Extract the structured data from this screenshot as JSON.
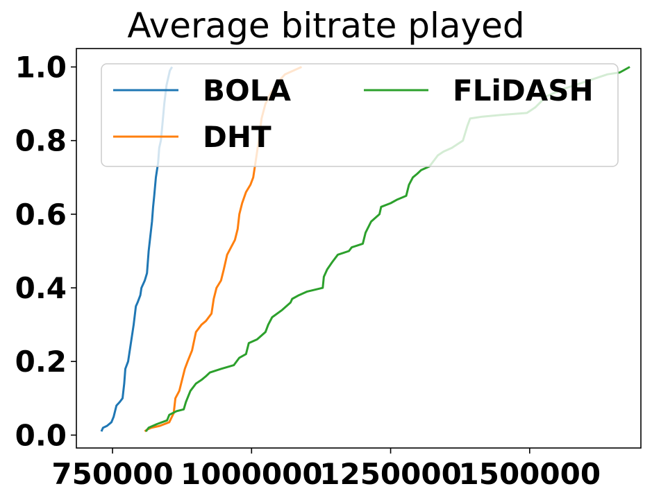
{
  "chart_data": {
    "type": "line",
    "title": "Average bitrate played",
    "xlabel": "",
    "ylabel": "",
    "xlim": [
      685000,
      1700000
    ],
    "ylim": [
      -0.035,
      1.05
    ],
    "x_ticks": [
      750000,
      1000000,
      1250000,
      1500000
    ],
    "x_tick_labels": [
      "750000",
      "1000000",
      "1250000",
      "1500000"
    ],
    "y_ticks": [
      0.0,
      0.2,
      0.4,
      0.6,
      0.8,
      1.0
    ],
    "y_tick_labels": [
      "0.0",
      "0.2",
      "0.4",
      "0.6",
      "0.8",
      "1.0"
    ],
    "grid": false,
    "legend": {
      "position": "top",
      "columns": 2
    },
    "series": [
      {
        "name": "BOLA",
        "color": "#1f77b4",
        "points": [
          [
            730000,
            0.01
          ],
          [
            733000,
            0.02
          ],
          [
            740000,
            0.025
          ],
          [
            748000,
            0.035
          ],
          [
            752000,
            0.05
          ],
          [
            757000,
            0.08
          ],
          [
            763000,
            0.09
          ],
          [
            768000,
            0.1
          ],
          [
            771000,
            0.14
          ],
          [
            773000,
            0.18
          ],
          [
            778000,
            0.2
          ],
          [
            782000,
            0.24
          ],
          [
            786000,
            0.28
          ],
          [
            788000,
            0.3
          ],
          [
            792000,
            0.35
          ],
          [
            795000,
            0.36
          ],
          [
            800000,
            0.38
          ],
          [
            802000,
            0.4
          ],
          [
            808000,
            0.42
          ],
          [
            812000,
            0.44
          ],
          [
            815000,
            0.5
          ],
          [
            818000,
            0.54
          ],
          [
            821000,
            0.58
          ],
          [
            823000,
            0.62
          ],
          [
            825000,
            0.65
          ],
          [
            828000,
            0.7
          ],
          [
            832000,
            0.74
          ],
          [
            834000,
            0.78
          ],
          [
            837000,
            0.8
          ],
          [
            840000,
            0.85
          ],
          [
            843000,
            0.9
          ],
          [
            847000,
            0.95
          ],
          [
            853000,
            0.99
          ],
          [
            857000,
            1.0
          ]
        ]
      },
      {
        "name": "DHT",
        "color": "#ff7f0e",
        "points": [
          [
            808000,
            0.01
          ],
          [
            812000,
            0.015
          ],
          [
            820000,
            0.02
          ],
          [
            835000,
            0.025
          ],
          [
            852000,
            0.035
          ],
          [
            860000,
            0.06
          ],
          [
            863000,
            0.1
          ],
          [
            870000,
            0.12
          ],
          [
            875000,
            0.15
          ],
          [
            880000,
            0.18
          ],
          [
            885000,
            0.2
          ],
          [
            893000,
            0.23
          ],
          [
            900000,
            0.28
          ],
          [
            910000,
            0.3
          ],
          [
            918000,
            0.31
          ],
          [
            928000,
            0.33
          ],
          [
            932000,
            0.37
          ],
          [
            937000,
            0.4
          ],
          [
            945000,
            0.42
          ],
          [
            950000,
            0.45
          ],
          [
            956000,
            0.49
          ],
          [
            963000,
            0.51
          ],
          [
            970000,
            0.53
          ],
          [
            975000,
            0.56
          ],
          [
            978000,
            0.6
          ],
          [
            983000,
            0.63
          ],
          [
            990000,
            0.66
          ],
          [
            998000,
            0.68
          ],
          [
            1003000,
            0.7
          ],
          [
            1008000,
            0.75
          ],
          [
            1013000,
            0.8
          ],
          [
            1018000,
            0.86
          ],
          [
            1025000,
            0.9
          ],
          [
            1035000,
            0.93
          ],
          [
            1048000,
            0.96
          ],
          [
            1060000,
            0.98
          ],
          [
            1075000,
            0.99
          ],
          [
            1090000,
            1.0
          ]
        ]
      },
      {
        "name": "FLiDASH",
        "color": "#2ca02c",
        "points": [
          [
            810000,
            0.01
          ],
          [
            815000,
            0.02
          ],
          [
            830000,
            0.03
          ],
          [
            848000,
            0.04
          ],
          [
            852000,
            0.055
          ],
          [
            865000,
            0.065
          ],
          [
            878000,
            0.07
          ],
          [
            882000,
            0.09
          ],
          [
            890000,
            0.12
          ],
          [
            900000,
            0.14
          ],
          [
            910000,
            0.15
          ],
          [
            918000,
            0.16
          ],
          [
            925000,
            0.17
          ],
          [
            945000,
            0.18
          ],
          [
            968000,
            0.19
          ],
          [
            978000,
            0.21
          ],
          [
            990000,
            0.22
          ],
          [
            995000,
            0.25
          ],
          [
            1010000,
            0.26
          ],
          [
            1025000,
            0.28
          ],
          [
            1030000,
            0.3
          ],
          [
            1037000,
            0.32
          ],
          [
            1055000,
            0.34
          ],
          [
            1070000,
            0.36
          ],
          [
            1073000,
            0.37
          ],
          [
            1085000,
            0.38
          ],
          [
            1100000,
            0.39
          ],
          [
            1128000,
            0.4
          ],
          [
            1130000,
            0.43
          ],
          [
            1136000,
            0.45
          ],
          [
            1145000,
            0.47
          ],
          [
            1155000,
            0.49
          ],
          [
            1175000,
            0.5
          ],
          [
            1180000,
            0.51
          ],
          [
            1200000,
            0.52
          ],
          [
            1205000,
            0.55
          ],
          [
            1215000,
            0.58
          ],
          [
            1230000,
            0.6
          ],
          [
            1233000,
            0.62
          ],
          [
            1250000,
            0.63
          ],
          [
            1262000,
            0.64
          ],
          [
            1278000,
            0.65
          ],
          [
            1283000,
            0.68
          ],
          [
            1290000,
            0.7
          ],
          [
            1298000,
            0.71
          ],
          [
            1305000,
            0.72
          ],
          [
            1320000,
            0.73
          ],
          [
            1325000,
            0.74
          ],
          [
            1335000,
            0.76
          ],
          [
            1345000,
            0.77
          ],
          [
            1360000,
            0.78
          ],
          [
            1370000,
            0.79
          ],
          [
            1380000,
            0.8
          ],
          [
            1388000,
            0.84
          ],
          [
            1393000,
            0.86
          ],
          [
            1415000,
            0.865
          ],
          [
            1450000,
            0.87
          ],
          [
            1495000,
            0.875
          ],
          [
            1510000,
            0.89
          ],
          [
            1530000,
            0.92
          ],
          [
            1560000,
            0.94
          ],
          [
            1600000,
            0.96
          ],
          [
            1640000,
            0.98
          ],
          [
            1662000,
            0.985
          ],
          [
            1680000,
            1.0
          ]
        ]
      }
    ]
  }
}
